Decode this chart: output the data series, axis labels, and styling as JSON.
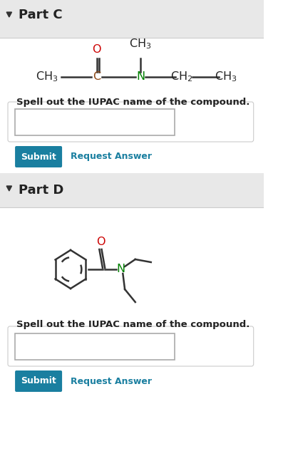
{
  "bg_color": "#f0f0f0",
  "white_bg": "#ffffff",
  "part_c_label": "Part C",
  "part_d_label": "Part D",
  "spell_text": "Spell out the IUPAC name of the compound.",
  "submit_text": "Submit",
  "request_text": "Request Answer",
  "submit_color": "#1a7fa0",
  "request_color": "#1a7fa0",
  "arrow_color": "#333333",
  "bond_color": "#333333",
  "atom_O_color": "#cc0000",
  "atom_N_color": "#008000",
  "atom_C_color": "#8B4513",
  "atom_black_color": "#222222",
  "header_bg": "#e8e8e8"
}
